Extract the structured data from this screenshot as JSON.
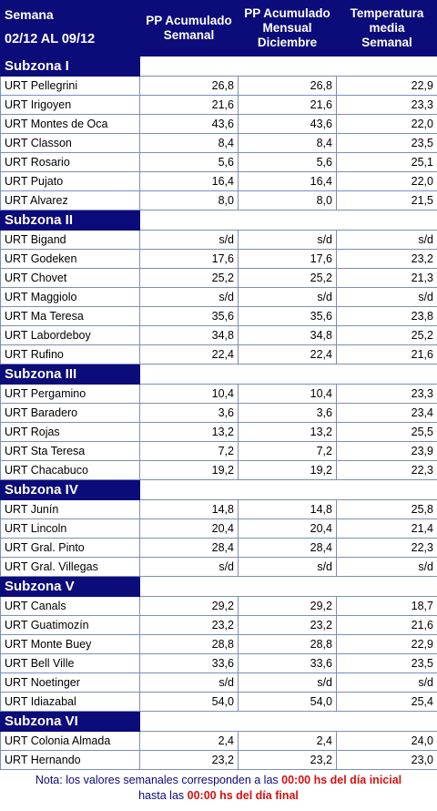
{
  "header": {
    "semana_label": "Semana",
    "date_range": "02/12 AL 09/12",
    "col1": [
      "PP Acumulado",
      "Semanal"
    ],
    "col2": [
      "PP Acumulado",
      "Mensual",
      "Diciembre"
    ],
    "col3": [
      "Temperatura",
      "media",
      "Semanal"
    ]
  },
  "zones": [
    {
      "name": "Subzona I",
      "rows": [
        {
          "station": "URT Pellegrini",
          "pp_semanal": "26,8",
          "pp_mensual": "26,8",
          "temp": "22,9"
        },
        {
          "station": "URT Irigoyen",
          "pp_semanal": "21,6",
          "pp_mensual": "21,6",
          "temp": "23,3"
        },
        {
          "station": "URT Montes de Oca",
          "pp_semanal": "43,6",
          "pp_mensual": "43,6",
          "temp": "22,0"
        },
        {
          "station": "URT Classon",
          "pp_semanal": "8,4",
          "pp_mensual": "8,4",
          "temp": "23,5"
        },
        {
          "station": "URT Rosario",
          "pp_semanal": "5,6",
          "pp_mensual": "5,6",
          "temp": "25,1"
        },
        {
          "station": "URT Pujato",
          "pp_semanal": "16,4",
          "pp_mensual": "16,4",
          "temp": "22,0"
        },
        {
          "station": "URT Alvarez",
          "pp_semanal": "8,0",
          "pp_mensual": "8,0",
          "temp": "21,5"
        }
      ]
    },
    {
      "name": "Subzona II",
      "rows": [
        {
          "station": "URT Bigand",
          "pp_semanal": "s/d",
          "pp_mensual": "s/d",
          "temp": "s/d"
        },
        {
          "station": "URT Godeken",
          "pp_semanal": "17,6",
          "pp_mensual": "17,6",
          "temp": "23,2"
        },
        {
          "station": "URT Chovet",
          "pp_semanal": "25,2",
          "pp_mensual": "25,2",
          "temp": "21,3"
        },
        {
          "station": "URT Maggiolo",
          "pp_semanal": "s/d",
          "pp_mensual": "s/d",
          "temp": "s/d"
        },
        {
          "station": "URT Ma Teresa",
          "pp_semanal": "35,6",
          "pp_mensual": "35,6",
          "temp": "23,8"
        },
        {
          "station": "URT Labordeboy",
          "pp_semanal": "34,8",
          "pp_mensual": "34,8",
          "temp": "25,2"
        },
        {
          "station": "URT Rufino",
          "pp_semanal": "22,4",
          "pp_mensual": "22,4",
          "temp": "21,6"
        }
      ]
    },
    {
      "name": "Subzona III",
      "rows": [
        {
          "station": "URT Pergamino",
          "pp_semanal": "10,4",
          "pp_mensual": "10,4",
          "temp": "23,3"
        },
        {
          "station": "URT Baradero",
          "pp_semanal": "3,6",
          "pp_mensual": "3,6",
          "temp": "23,4"
        },
        {
          "station": "URT Rojas",
          "pp_semanal": "13,2",
          "pp_mensual": "13,2",
          "temp": "25,5"
        },
        {
          "station": "URT Sta Teresa",
          "pp_semanal": "7,2",
          "pp_mensual": "7,2",
          "temp": "23,9"
        },
        {
          "station": "URT Chacabuco",
          "pp_semanal": "19,2",
          "pp_mensual": "19,2",
          "temp": "22,3"
        }
      ]
    },
    {
      "name": "Subzona IV",
      "rows": [
        {
          "station": "URT Junín",
          "pp_semanal": "14,8",
          "pp_mensual": "14,8",
          "temp": "25,8"
        },
        {
          "station": "URT Lincoln",
          "pp_semanal": "20,4",
          "pp_mensual": "20,4",
          "temp": "21,4"
        },
        {
          "station": "URT Gral. Pinto",
          "pp_semanal": "28,4",
          "pp_mensual": "28,4",
          "temp": "22,3"
        },
        {
          "station": "URT Gral. Villegas",
          "pp_semanal": "s/d",
          "pp_mensual": "s/d",
          "temp": "s/d"
        }
      ]
    },
    {
      "name": "Subzona V",
      "rows": [
        {
          "station": "URT Canals",
          "pp_semanal": "29,2",
          "pp_mensual": "29,2",
          "temp": "18,7"
        },
        {
          "station": "URT Guatimozín",
          "pp_semanal": "23,2",
          "pp_mensual": "23,2",
          "temp": "21,6"
        },
        {
          "station": "URT Monte Buey",
          "pp_semanal": "28,8",
          "pp_mensual": "28,8",
          "temp": "22,9"
        },
        {
          "station": "URT Bell Ville",
          "pp_semanal": "33,6",
          "pp_mensual": "33,6",
          "temp": "23,5"
        },
        {
          "station": "URT Noetinger",
          "pp_semanal": "s/d",
          "pp_mensual": "s/d",
          "temp": "s/d"
        },
        {
          "station": "URT Idiazabal",
          "pp_semanal": "54,0",
          "pp_mensual": "54,0",
          "temp": "25,4"
        }
      ]
    },
    {
      "name": "Subzona VI",
      "rows": [
        {
          "station": "URT Colonia Almada",
          "pp_semanal": "2,4",
          "pp_mensual": "2,4",
          "temp": "24,0"
        },
        {
          "station": "URT Hernando",
          "pp_semanal": "23,2",
          "pp_mensual": "23,2",
          "temp": "23,0"
        }
      ]
    }
  ],
  "note": {
    "part1": "Nota: los valores semanales corresponden a las ",
    "highlight1": "00:00 hs del día inicial",
    "part2": "hasta las ",
    "highlight2": "00:00 hs del día final"
  },
  "colors": {
    "header_bg": "#0b0b7a",
    "grid": "#7a8fb8",
    "note_red": "#d81010"
  }
}
